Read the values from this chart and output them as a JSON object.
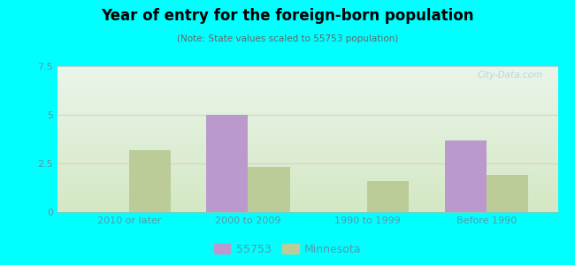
{
  "title": "Year of entry for the foreign-born population",
  "subtitle": "(Note: State values scaled to 55753 population)",
  "categories": [
    "2010 or later",
    "2000 to 2009",
    "1990 to 1999",
    "Before 1990"
  ],
  "values_55753": [
    0,
    5.0,
    0,
    3.7
  ],
  "values_mn": [
    3.2,
    2.3,
    1.6,
    1.9
  ],
  "color_55753": "#bb99cc",
  "color_mn": "#bbcc99",
  "ylim": [
    0,
    7.5
  ],
  "yticks": [
    0,
    2.5,
    5,
    7.5
  ],
  "background_outer": "#00ffff",
  "background_inner_bottom": "#d8e8c8",
  "background_inner_top": "#e8f0e8",
  "bar_width": 0.35,
  "legend_55753": "55753",
  "legend_mn": "Minnesota",
  "tick_color": "#5599aa",
  "grid_color": "#ddcccc"
}
